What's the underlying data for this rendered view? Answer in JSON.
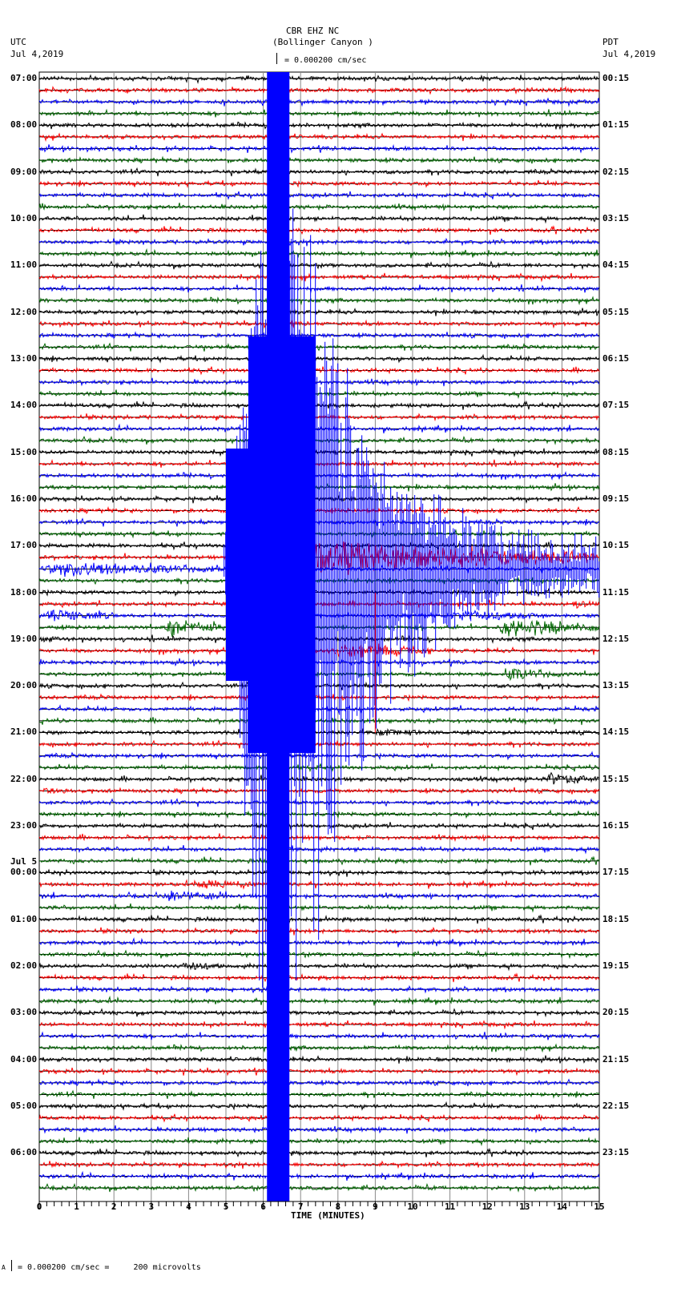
{
  "header": {
    "station": "CBR EHZ NC",
    "location": "(Bollinger Canyon )",
    "scale_text": "= 0.000200 cm/sec",
    "left_tz": "UTC",
    "left_date": "Jul 4,2019",
    "right_tz": "PDT",
    "right_date": "Jul 4,2019"
  },
  "footer": {
    "scale_prefix": "A",
    "scale_text": "= 0.000200 cm/sec =     200 microvolts"
  },
  "chart_data": {
    "type": "seismogram",
    "title": "CBR EHZ NC (Bollinger Canyon )",
    "xlabel": "TIME (MINUTES)",
    "x_ticks": [
      "0",
      "1",
      "2",
      "3",
      "4",
      "5",
      "6",
      "7",
      "8",
      "9",
      "10",
      "11",
      "12",
      "13",
      "14",
      "15"
    ],
    "xlim": [
      0,
      15
    ],
    "rows_per_hour": 4,
    "trace_colors": [
      "#000000",
      "#ff0000",
      "#0000ff",
      "#006600"
    ],
    "left_labels": [
      {
        "row": 0,
        "text": "07:00"
      },
      {
        "row": 4,
        "text": "08:00"
      },
      {
        "row": 8,
        "text": "09:00"
      },
      {
        "row": 12,
        "text": "10:00"
      },
      {
        "row": 16,
        "text": "11:00"
      },
      {
        "row": 20,
        "text": "12:00"
      },
      {
        "row": 24,
        "text": "13:00"
      },
      {
        "row": 28,
        "text": "14:00"
      },
      {
        "row": 32,
        "text": "15:00"
      },
      {
        "row": 36,
        "text": "16:00"
      },
      {
        "row": 40,
        "text": "17:00"
      },
      {
        "row": 44,
        "text": "18:00"
      },
      {
        "row": 48,
        "text": "19:00"
      },
      {
        "row": 52,
        "text": "20:00"
      },
      {
        "row": 56,
        "text": "21:00"
      },
      {
        "row": 60,
        "text": "22:00"
      },
      {
        "row": 64,
        "text": "23:00"
      },
      {
        "row": 68,
        "text": "00:00",
        "date": "Jul 5"
      },
      {
        "row": 72,
        "text": "01:00"
      },
      {
        "row": 76,
        "text": "02:00"
      },
      {
        "row": 80,
        "text": "03:00"
      },
      {
        "row": 84,
        "text": "04:00"
      },
      {
        "row": 88,
        "text": "05:00"
      },
      {
        "row": 92,
        "text": "06:00"
      }
    ],
    "right_labels": [
      {
        "row": 0,
        "text": "00:15"
      },
      {
        "row": 4,
        "text": "01:15"
      },
      {
        "row": 8,
        "text": "02:15"
      },
      {
        "row": 12,
        "text": "03:15"
      },
      {
        "row": 16,
        "text": "04:15"
      },
      {
        "row": 20,
        "text": "05:15"
      },
      {
        "row": 24,
        "text": "06:15"
      },
      {
        "row": 28,
        "text": "07:15"
      },
      {
        "row": 32,
        "text": "08:15"
      },
      {
        "row": 36,
        "text": "09:15"
      },
      {
        "row": 40,
        "text": "10:15"
      },
      {
        "row": 44,
        "text": "11:15"
      },
      {
        "row": 48,
        "text": "12:15"
      },
      {
        "row": 52,
        "text": "13:15"
      },
      {
        "row": 56,
        "text": "14:15"
      },
      {
        "row": 60,
        "text": "15:15"
      },
      {
        "row": 64,
        "text": "16:15"
      },
      {
        "row": 68,
        "text": "17:15"
      },
      {
        "row": 72,
        "text": "18:15"
      },
      {
        "row": 76,
        "text": "19:15"
      },
      {
        "row": 80,
        "text": "20:15"
      },
      {
        "row": 84,
        "text": "21:15"
      },
      {
        "row": 88,
        "text": "22:15"
      },
      {
        "row": 92,
        "text": "23:15"
      }
    ],
    "major_event": {
      "description": "Large earthquake on blue trace 17:45 UTC row, clipped signal spanning most of the plot vertically",
      "start_min": 4.95,
      "clip_center_min": 6.4
    },
    "events": [
      {
        "row": 42,
        "start_min": 0.0,
        "end_min": 5.0,
        "amp": 9,
        "desc": "green coda"
      },
      {
        "row": 41,
        "start_min": 5.0,
        "end_min": 15.0,
        "amp": 30,
        "desc": "blue main shock coda"
      },
      {
        "row": 46,
        "start_min": 0.1,
        "end_min": 2.0,
        "amp": 8
      },
      {
        "row": 46,
        "start_min": 11.0,
        "end_min": 13.5,
        "amp": 7
      },
      {
        "row": 47,
        "start_min": 3.3,
        "end_min": 5.0,
        "amp": 10
      },
      {
        "row": 47,
        "start_min": 12.2,
        "end_min": 15.0,
        "amp": 14
      },
      {
        "row": 49,
        "start_min": 7.8,
        "end_min": 10.5,
        "amp": 11
      },
      {
        "row": 45,
        "start_min": 14.3,
        "end_min": 15.0,
        "amp": 5
      },
      {
        "row": 51,
        "start_min": 12.4,
        "end_min": 14.0,
        "amp": 8
      },
      {
        "row": 56,
        "start_min": 9.0,
        "end_min": 10.6,
        "amp": 4
      },
      {
        "row": 60,
        "start_min": 13.4,
        "end_min": 15.0,
        "amp": 9
      },
      {
        "row": 61,
        "start_min": 0.0,
        "end_min": 1.0,
        "amp": 4
      },
      {
        "row": 69,
        "start_min": 4.2,
        "end_min": 6.0,
        "amp": 6
      },
      {
        "row": 70,
        "start_min": 3.3,
        "end_min": 5.0,
        "amp": 6
      },
      {
        "row": 76,
        "start_min": 3.8,
        "end_min": 5.0,
        "amp": 5
      },
      {
        "row": 48,
        "start_min": 0.0,
        "end_min": 0.6,
        "amp": 4
      }
    ]
  }
}
